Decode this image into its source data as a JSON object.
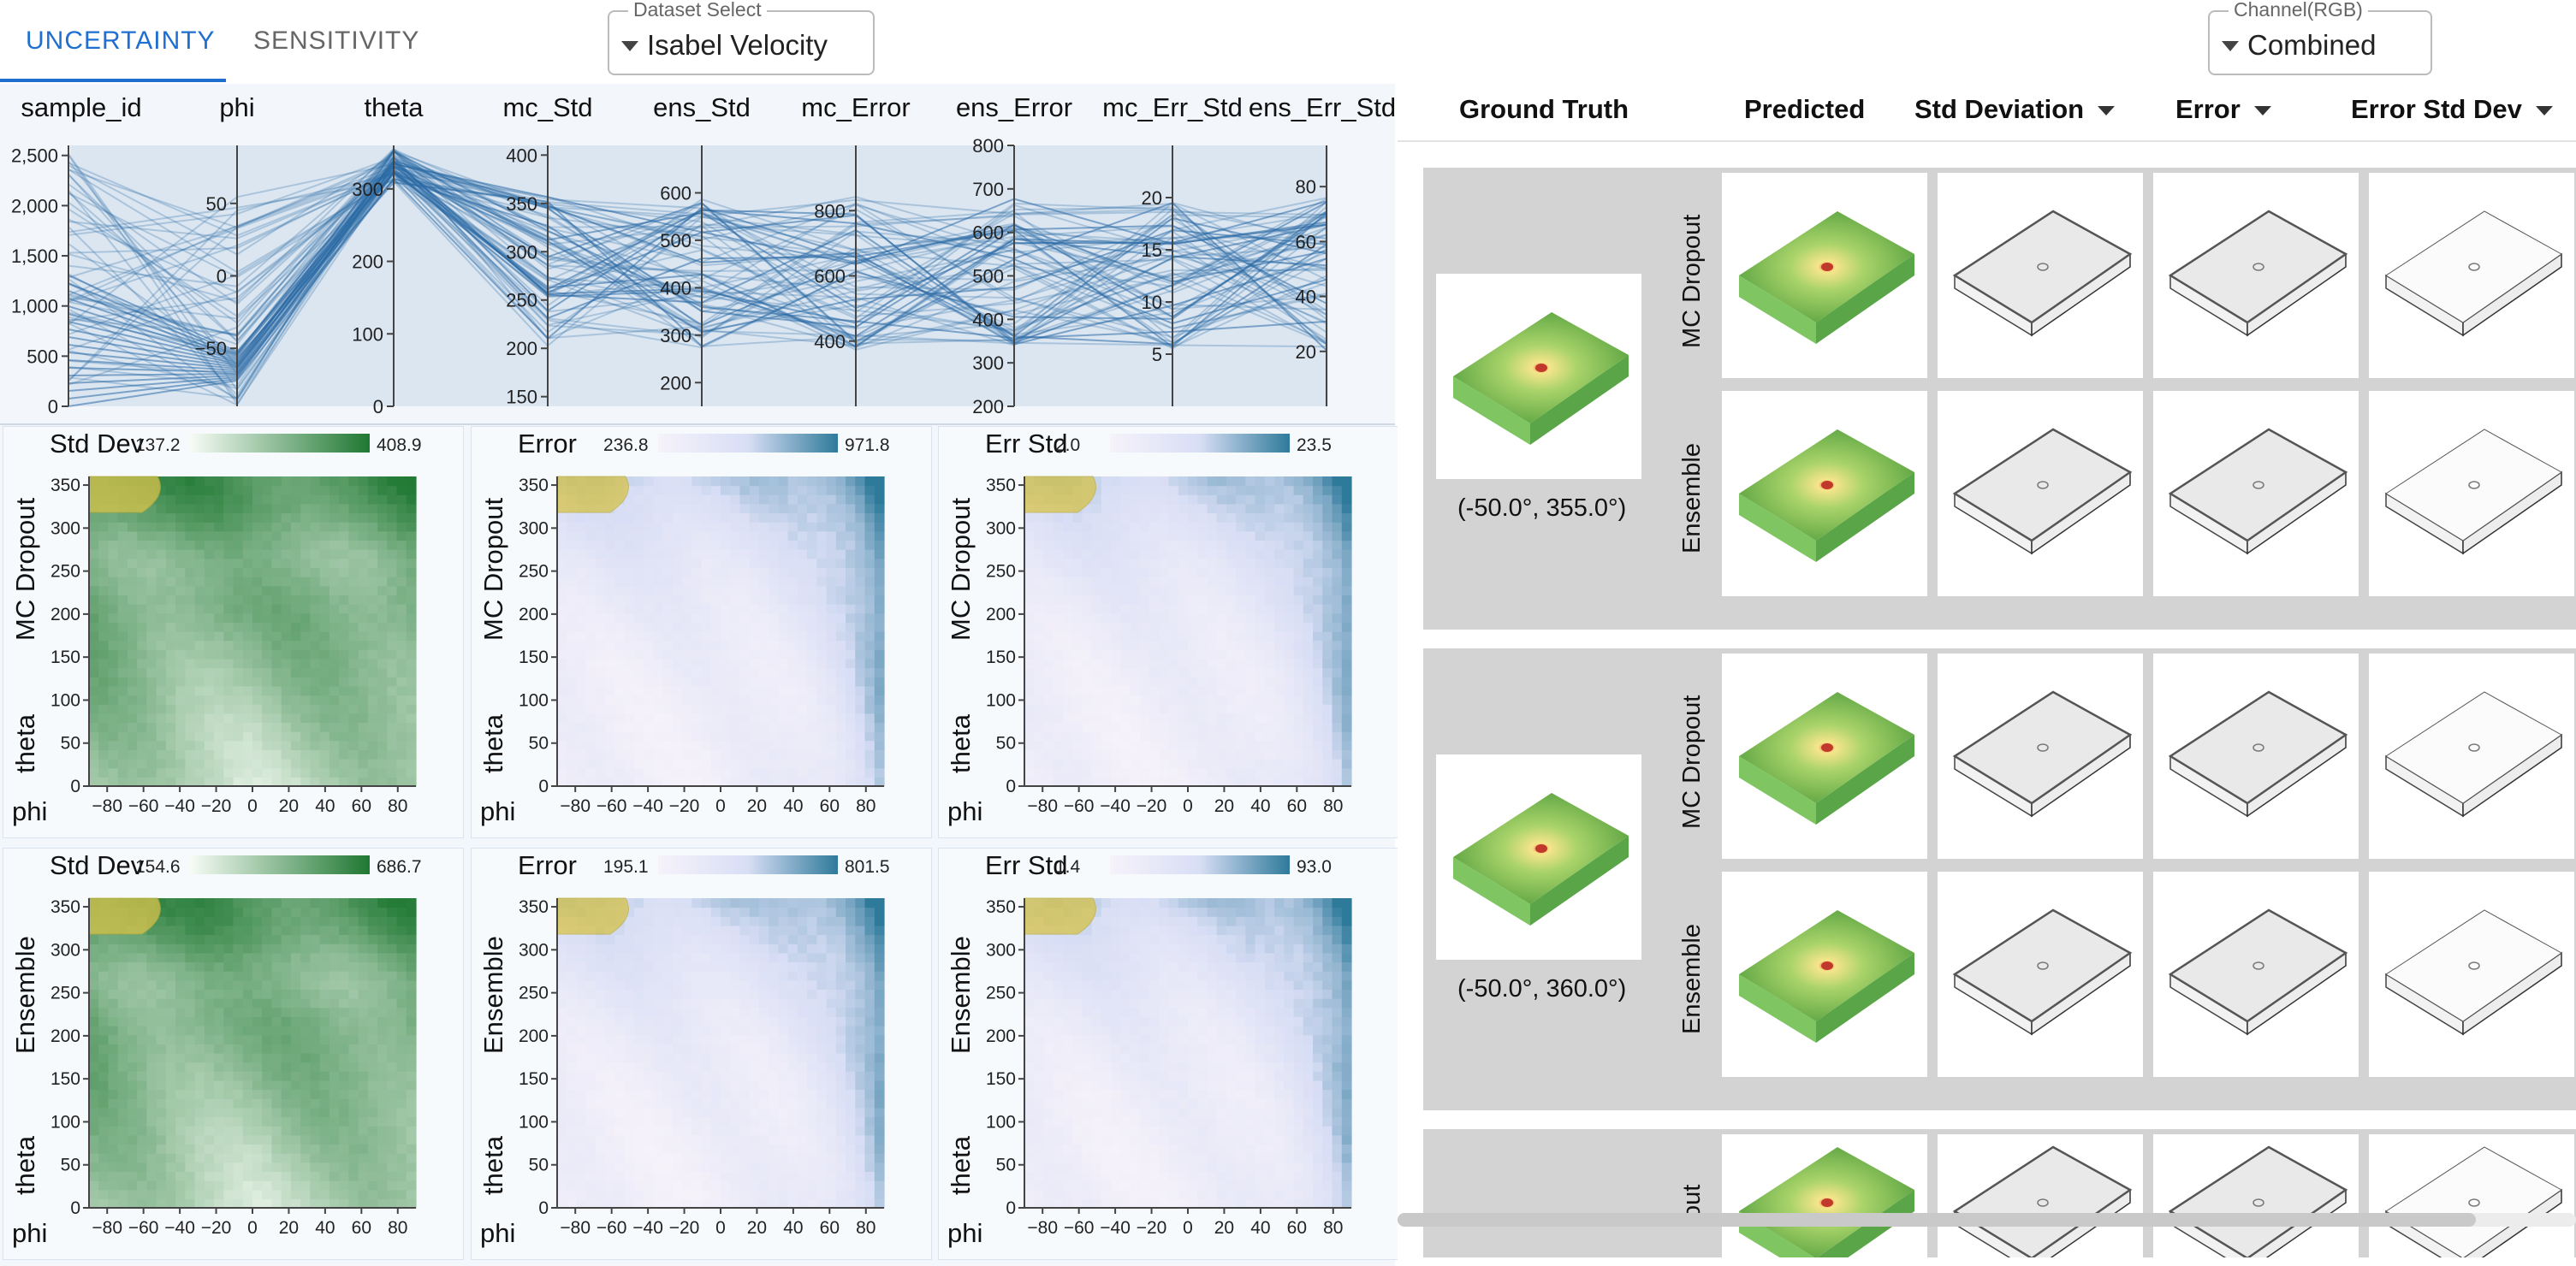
{
  "tabs": [
    {
      "label": "UNCERTAINTY",
      "active": true
    },
    {
      "label": "SENSITIVITY",
      "active": false
    }
  ],
  "dataset_select": {
    "legend": "Dataset Select",
    "value": "Isabel Velocity"
  },
  "channel_select": {
    "legend": "Channel(RGB)",
    "value": "Combined"
  },
  "parallel_coords": {
    "axes": [
      {
        "name": "sample_id",
        "ticks": [
          "2,500",
          "2,000",
          "1,500",
          "1,000",
          "500",
          "0"
        ],
        "tick_values": [
          2500,
          2000,
          1500,
          1000,
          500,
          0
        ],
        "range": [
          0,
          2600
        ]
      },
      {
        "name": "phi",
        "ticks": [
          "50",
          "0",
          "−50"
        ],
        "tick_values": [
          50,
          0,
          -50
        ],
        "range": [
          -90,
          90
        ]
      },
      {
        "name": "theta",
        "ticks": [
          "300",
          "200",
          "100",
          "0"
        ],
        "tick_values": [
          300,
          200,
          100,
          0
        ],
        "range": [
          0,
          360
        ]
      },
      {
        "name": "mc_Std",
        "ticks": [
          "400",
          "350",
          "300",
          "250",
          "200",
          "150"
        ],
        "tick_values": [
          400,
          350,
          300,
          250,
          200,
          150
        ],
        "range": [
          140,
          410
        ]
      },
      {
        "name": "ens_Std",
        "ticks": [
          "600",
          "500",
          "400",
          "300",
          "200"
        ],
        "tick_values": [
          600,
          500,
          400,
          300,
          200
        ],
        "range": [
          150,
          700
        ]
      },
      {
        "name": "mc_Error",
        "ticks": [
          "800",
          "600",
          "400"
        ],
        "tick_values": [
          800,
          600,
          400
        ],
        "range": [
          200,
          1000
        ]
      },
      {
        "name": "ens_Error",
        "ticks": [
          "800",
          "700",
          "600",
          "500",
          "400",
          "300",
          "200"
        ],
        "tick_values": [
          800,
          700,
          600,
          500,
          400,
          300,
          200
        ],
        "range": [
          200,
          800
        ]
      },
      {
        "name": "mc_Err_Std",
        "ticks": [
          "20",
          "15",
          "10",
          "5"
        ],
        "tick_values": [
          20,
          15,
          10,
          5
        ],
        "range": [
          0,
          25
        ]
      },
      {
        "name": "ens_Err_Std",
        "ticks": [
          "80",
          "60",
          "40",
          "20"
        ],
        "tick_values": [
          80,
          60,
          40,
          20
        ],
        "range": [
          0,
          95
        ]
      }
    ]
  },
  "heatmaps": {
    "rows": [
      {
        "model": "MC Dropout",
        "panels": [
          {
            "title": "Std Dev",
            "min": "137.2",
            "max": "408.9",
            "scheme": "green"
          },
          {
            "title": "Error",
            "min": "236.8",
            "max": "971.8",
            "scheme": "blue"
          },
          {
            "title": "Err Std",
            "min": "2.0",
            "max": "23.5",
            "scheme": "blue"
          }
        ]
      },
      {
        "model": "Ensemble",
        "panels": [
          {
            "title": "Std Dev",
            "min": "154.6",
            "max": "686.7",
            "scheme": "green"
          },
          {
            "title": "Error",
            "min": "195.1",
            "max": "801.5",
            "scheme": "blue"
          },
          {
            "title": "Err Std",
            "min": "1.4",
            "max": "93.0",
            "scheme": "blue"
          }
        ]
      }
    ],
    "y_axis_label": "theta",
    "x_axis_label": "phi",
    "y_ticks": [
      "350",
      "300",
      "250",
      "200",
      "150",
      "100",
      "50",
      "0"
    ],
    "x_ticks": [
      "−80",
      "−60",
      "−40",
      "−20",
      "0",
      "20",
      "40",
      "60",
      "80"
    ]
  },
  "results": {
    "columns": [
      {
        "label": "Ground Truth",
        "dropdown": false
      },
      {
        "label": "Predicted",
        "dropdown": false
      },
      {
        "label": "Std Deviation",
        "dropdown": true
      },
      {
        "label": "Error",
        "dropdown": true
      },
      {
        "label": "Error Std Dev",
        "dropdown": true
      }
    ],
    "groups": [
      {
        "coord": "(-50.0°, 355.0°)",
        "models": [
          "MC Dropout",
          "Ensemble"
        ]
      },
      {
        "coord": "(-50.0°, 360.0°)",
        "models": [
          "MC Dropout",
          "Ensemble"
        ]
      },
      {
        "coord": "",
        "models": [
          "out"
        ]
      }
    ]
  },
  "colors": {
    "accent": "#1e6fd0",
    "green_high": "#1f6b2e",
    "blue_high": "#2e6f95",
    "line": "#2b6aa6",
    "panel_bg": "#d3d3d3"
  }
}
